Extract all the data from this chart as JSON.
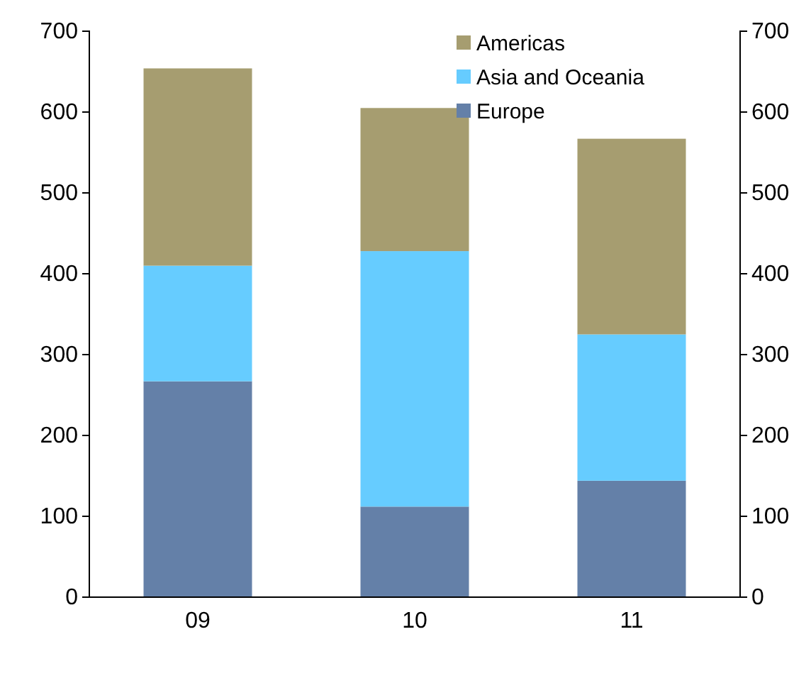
{
  "chart_data": {
    "type": "bar",
    "stacked": true,
    "categories": [
      "09",
      "10",
      "11"
    ],
    "series": [
      {
        "name": "Europe",
        "color": "#6480a8",
        "values": [
          267,
          112,
          144
        ]
      },
      {
        "name": "Asia and Oceania",
        "color": "#66ccff",
        "values": [
          143,
          316,
          181
        ]
      },
      {
        "name": "Americas",
        "color": "#a69d70",
        "values": [
          244,
          177,
          242
        ]
      }
    ],
    "ylim": [
      0,
      700
    ],
    "yticks": [
      0,
      100,
      200,
      300,
      400,
      500,
      600,
      700
    ],
    "y2lim": [
      0,
      700
    ],
    "y2ticks": [
      0,
      100,
      200,
      300,
      400,
      500,
      600,
      700
    ],
    "legend": "top right"
  }
}
